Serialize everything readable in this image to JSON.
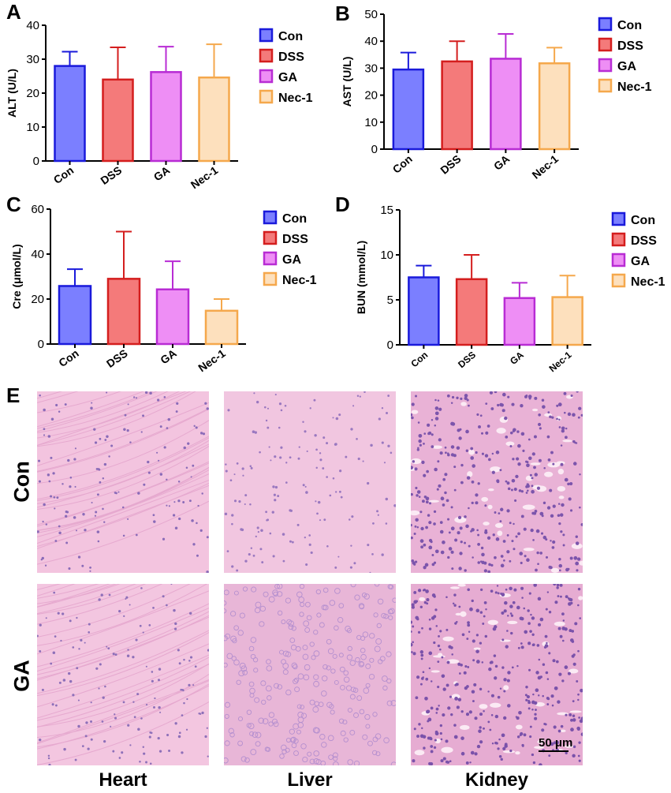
{
  "panels": {
    "a": "A",
    "b": "B",
    "c": "C",
    "d": "D",
    "e": "E"
  },
  "chart_data": [
    {
      "type": "bar",
      "categories": [
        "Con",
        "DSS",
        "GA",
        "Nec-1"
      ],
      "values": [
        28,
        24,
        26.2,
        24.6
      ],
      "errors": [
        4.2,
        9.5,
        7.5,
        9.8
      ],
      "ylabel": "ALT (U/L)",
      "ylim": [
        0,
        40
      ],
      "yticks": [
        0,
        10,
        20,
        30,
        40
      ],
      "legend": [
        "Con",
        "DSS",
        "GA",
        "Nec-1"
      ],
      "legend_position": "right"
    },
    {
      "type": "bar",
      "categories": [
        "Con",
        "DSS",
        "GA",
        "Nec-1"
      ],
      "values": [
        29.5,
        32.5,
        33.5,
        31.8
      ],
      "errors": [
        6.3,
        7.5,
        9.2,
        5.8
      ],
      "ylabel": "AST (U/L)",
      "ylim": [
        0,
        50
      ],
      "yticks": [
        0,
        10,
        20,
        30,
        40,
        50
      ],
      "legend": [
        "Con",
        "DSS",
        "GA",
        "Nec-1"
      ],
      "legend_position": "right"
    },
    {
      "type": "bar",
      "categories": [
        "Con",
        "DSS",
        "GA",
        "Nec-1"
      ],
      "values": [
        25.8,
        29,
        24.3,
        14.8
      ],
      "errors": [
        7.5,
        21,
        12.5,
        5.2
      ],
      "ylabel": "Cre (μmol/L)",
      "ylim": [
        0,
        60
      ],
      "yticks": [
        0,
        20,
        40,
        60
      ],
      "legend": [
        "Con",
        "DSS",
        "GA",
        "Nec-1"
      ],
      "legend_position": "right"
    },
    {
      "type": "bar",
      "categories": [
        "Con",
        "DSS",
        "GA",
        "Nec-1"
      ],
      "values": [
        7.5,
        7.3,
        5.2,
        5.3
      ],
      "errors": [
        1.3,
        2.7,
        1.7,
        2.4
      ],
      "ylabel": "BUN (mmol/L)",
      "ylim": [
        0,
        15
      ],
      "yticks": [
        0,
        5,
        10,
        15
      ],
      "legend": [
        "Con",
        "DSS",
        "GA",
        "Nec-1"
      ],
      "legend_position": "right"
    }
  ],
  "series_colors": {
    "Con": {
      "fill": "#7b7fff",
      "stroke": "#1a1adb"
    },
    "DSS": {
      "fill": "#f47a7a",
      "stroke": "#d41e1e"
    },
    "GA": {
      "fill": "#ee8ef5",
      "stroke": "#b82cd4"
    },
    "Nec-1": {
      "fill": "#fde0bd",
      "stroke": "#f5a84c"
    }
  },
  "histology": {
    "rows": [
      "Con",
      "GA"
    ],
    "columns": [
      "Heart",
      "Liver",
      "Kidney"
    ],
    "scale_bar": "50 μm"
  }
}
